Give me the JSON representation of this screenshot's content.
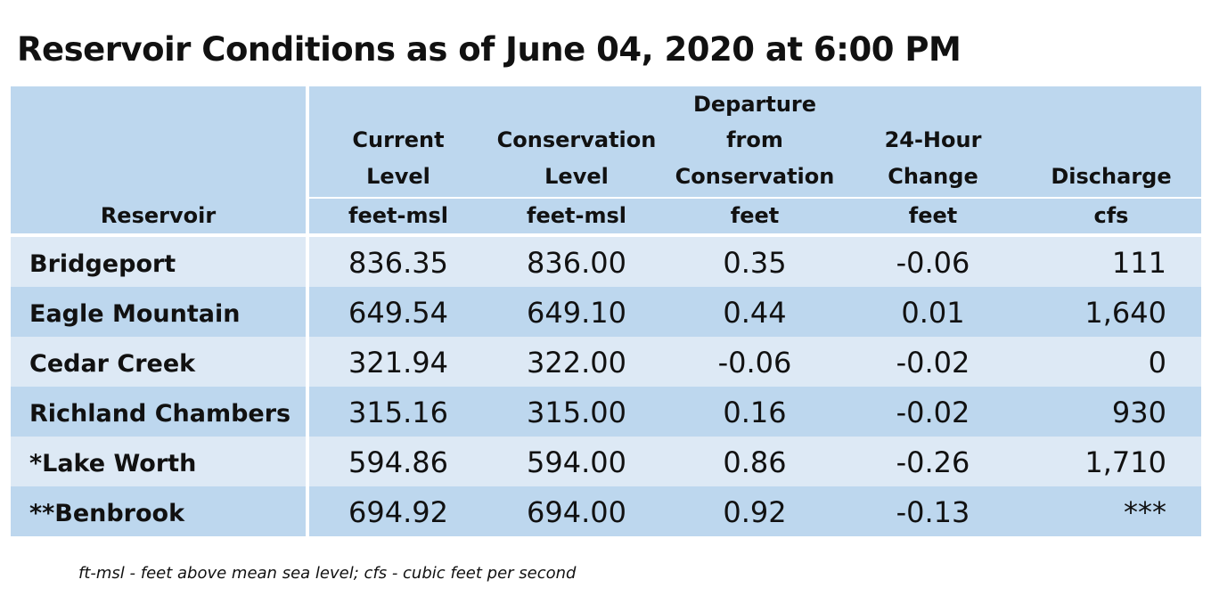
{
  "title": "Reservoir Conditions as of June 04, 2020 at 6:00 PM",
  "header": {
    "reservoir": "Reservoir",
    "current_level": [
      "Current",
      "Level"
    ],
    "conservation_level": [
      "Conservation",
      "Level"
    ],
    "departure": [
      "Departure",
      "from",
      "Conservation"
    ],
    "change_24h": [
      "24-Hour",
      "Change"
    ],
    "discharge": [
      "Discharge"
    ],
    "units": [
      "feet-msl",
      "feet-msl",
      "feet",
      "feet",
      "cfs"
    ]
  },
  "rows": [
    {
      "name": "Bridgeport",
      "current": "836.35",
      "conservation": "836.00",
      "departure": "0.35",
      "change": "-0.06",
      "discharge": "111"
    },
    {
      "name": "Eagle Mountain",
      "current": "649.54",
      "conservation": "649.10",
      "departure": "0.44",
      "change": "0.01",
      "discharge": "1,640"
    },
    {
      "name": "Cedar Creek",
      "current": "321.94",
      "conservation": "322.00",
      "departure": "-0.06",
      "change": "-0.02",
      "discharge": "0"
    },
    {
      "name": "Richland Chambers",
      "current": "315.16",
      "conservation": "315.00",
      "departure": "0.16",
      "change": "-0.02",
      "discharge": "930"
    },
    {
      "name": "*Lake Worth",
      "current": "594.86",
      "conservation": "594.00",
      "departure": "0.86",
      "change": "-0.26",
      "discharge": "1,710"
    },
    {
      "name": "**Benbrook",
      "current": "694.92",
      "conservation": "694.00",
      "departure": "0.92",
      "change": "-0.13",
      "discharge": "***"
    }
  ],
  "footnote": "ft-msl - feet above mean sea level; cfs - cubic feet per second",
  "colors": {
    "header_bg": "#bdd7ee",
    "row_light": "#dde9f5",
    "row_dark": "#bdd7ee",
    "separator": "#ffffff"
  }
}
